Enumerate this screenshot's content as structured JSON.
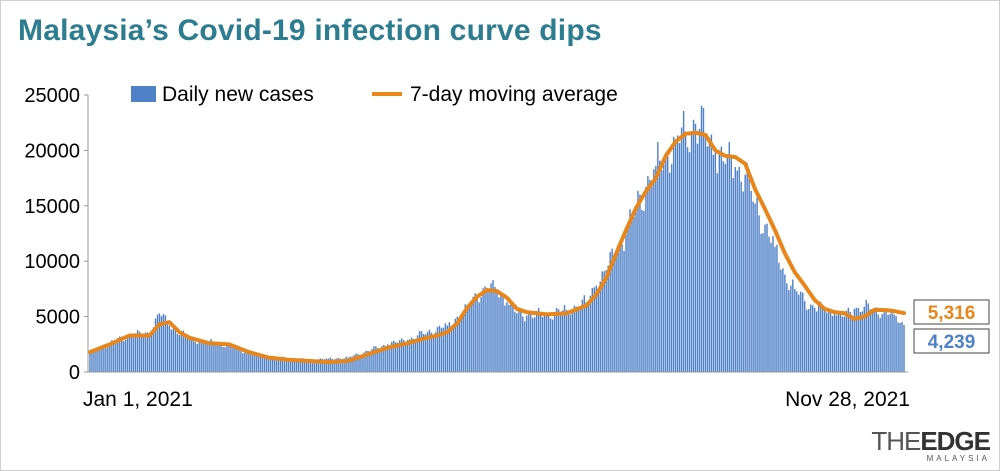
{
  "chart_data": {
    "type": "bar",
    "title": "Malaysia’s Covid-19 infection curve dips",
    "ylim": [
      0,
      25000
    ],
    "yticks": [
      "25000",
      "20000",
      "15000",
      "10000",
      "5000",
      "0"
    ],
    "x_start_label": "Jan 1, 2021",
    "x_end_label": "Nov 28, 2021",
    "legend": {
      "placement": "top-center"
    },
    "series": [
      {
        "name": "Daily new cases",
        "type": "bar",
        "color": "#4f81c7"
      },
      {
        "name": "7-day moving average",
        "type": "line",
        "color": "#e8861a"
      }
    ],
    "anchors": {
      "bars": [
        [
          0,
          1700
        ],
        [
          10,
          2600
        ],
        [
          20,
          3300
        ],
        [
          30,
          3500
        ],
        [
          35,
          5300
        ],
        [
          40,
          4200
        ],
        [
          50,
          3000
        ],
        [
          60,
          2700
        ],
        [
          70,
          2400
        ],
        [
          80,
          1700
        ],
        [
          90,
          1400
        ],
        [
          100,
          1200
        ],
        [
          110,
          1100
        ],
        [
          120,
          1200
        ],
        [
          130,
          1300
        ],
        [
          140,
          1900
        ],
        [
          150,
          2500
        ],
        [
          160,
          2900
        ],
        [
          170,
          3600
        ],
        [
          180,
          4200
        ],
        [
          190,
          5700
        ],
        [
          195,
          7000
        ],
        [
          200,
          7600
        ],
        [
          205,
          7300
        ],
        [
          210,
          6300
        ],
        [
          215,
          5300
        ],
        [
          220,
          5100
        ],
        [
          230,
          5200
        ],
        [
          240,
          5600
        ],
        [
          250,
          6300
        ],
        [
          255,
          7800
        ],
        [
          260,
          9200
        ],
        [
          265,
          10800
        ],
        [
          270,
          12400
        ],
        [
          275,
          14800
        ],
        [
          280,
          16700
        ],
        [
          285,
          18600
        ],
        [
          290,
          19800
        ],
        [
          295,
          20700
        ],
        [
          300,
          21700
        ],
        [
          305,
          22400
        ],
        [
          310,
          21500
        ],
        [
          315,
          19800
        ],
        [
          320,
          18800
        ],
        [
          325,
          18500
        ],
        [
          330,
          17800
        ],
        [
          335,
          15200
        ],
        [
          340,
          13300
        ],
        [
          345,
          11300
        ],
        [
          350,
          8800
        ],
        [
          355,
          7500
        ],
        [
          360,
          6400
        ],
        [
          365,
          5800
        ],
        [
          370,
          5600
        ],
        [
          375,
          5400
        ],
        [
          380,
          5000
        ],
        [
          385,
          5700
        ],
        [
          390,
          5900
        ],
        [
          395,
          5700
        ],
        [
          400,
          5400
        ],
        [
          405,
          5200
        ],
        [
          410,
          4239
        ]
      ],
      "line": [
        [
          0,
          1800
        ],
        [
          10,
          2500
        ],
        [
          20,
          3300
        ],
        [
          30,
          3300
        ],
        [
          35,
          4300
        ],
        [
          40,
          4500
        ],
        [
          45,
          3600
        ],
        [
          50,
          3100
        ],
        [
          60,
          2600
        ],
        [
          70,
          2500
        ],
        [
          80,
          1800
        ],
        [
          90,
          1300
        ],
        [
          100,
          1100
        ],
        [
          110,
          1000
        ],
        [
          120,
          900
        ],
        [
          130,
          1000
        ],
        [
          140,
          1600
        ],
        [
          150,
          2200
        ],
        [
          160,
          2600
        ],
        [
          170,
          3100
        ],
        [
          175,
          3300
        ],
        [
          180,
          3600
        ],
        [
          185,
          4400
        ],
        [
          190,
          5800
        ],
        [
          195,
          6800
        ],
        [
          200,
          7400
        ],
        [
          205,
          7300
        ],
        [
          210,
          6700
        ],
        [
          215,
          5700
        ],
        [
          220,
          5400
        ],
        [
          230,
          5200
        ],
        [
          240,
          5300
        ],
        [
          250,
          6000
        ],
        [
          255,
          7000
        ],
        [
          260,
          8500
        ],
        [
          265,
          10700
        ],
        [
          270,
          12800
        ],
        [
          275,
          14800
        ],
        [
          280,
          16300
        ],
        [
          285,
          17500
        ],
        [
          290,
          19500
        ],
        [
          295,
          20800
        ],
        [
          300,
          21500
        ],
        [
          305,
          21600
        ],
        [
          310,
          21400
        ],
        [
          315,
          20000
        ],
        [
          320,
          19500
        ],
        [
          325,
          19400
        ],
        [
          330,
          18800
        ],
        [
          335,
          16500
        ],
        [
          340,
          14700
        ],
        [
          345,
          12800
        ],
        [
          350,
          10700
        ],
        [
          355,
          9000
        ],
        [
          360,
          7800
        ],
        [
          365,
          6500
        ],
        [
          370,
          5700
        ],
        [
          375,
          5400
        ],
        [
          380,
          5300
        ],
        [
          385,
          4800
        ],
        [
          390,
          5000
        ],
        [
          395,
          5600
        ],
        [
          400,
          5600
        ],
        [
          405,
          5500
        ],
        [
          410,
          5316
        ]
      ]
    },
    "last_values": {
      "average": "5,316",
      "daily": "4,239"
    }
  },
  "branding": {
    "logo_the": "THE",
    "logo_edge": "EDGE",
    "logo_sub": "MALAYSIA"
  }
}
